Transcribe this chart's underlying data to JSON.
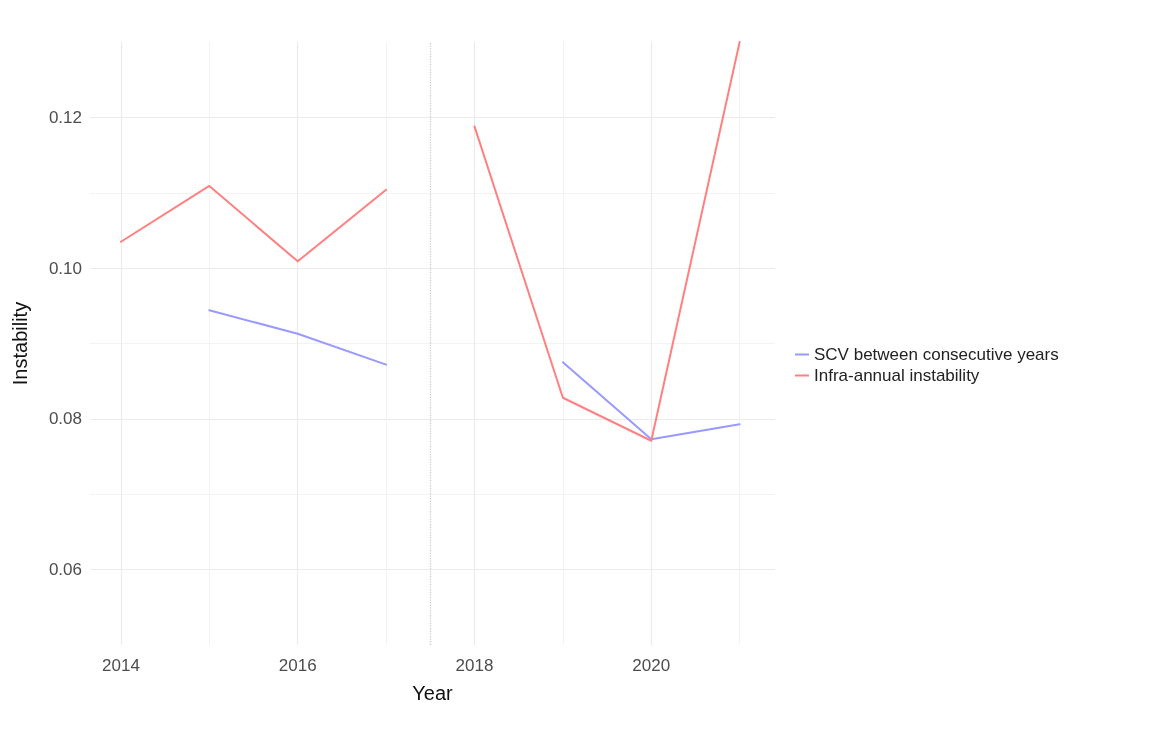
{
  "chart_data": {
    "type": "line",
    "xlabel": "Year",
    "ylabel": "Instability",
    "x": [
      2014,
      2015,
      2016,
      2017,
      2017.5,
      2018,
      2019,
      2020,
      2021
    ],
    "series": [
      {
        "name": "SCV between consecutive years",
        "color": "#9999ff",
        "values": [
          null,
          0.0944,
          0.0913,
          0.0872,
          null,
          null,
          0.0875,
          0.0773,
          0.0793
        ]
      },
      {
        "name": "Infra-annual instability",
        "color": "#ff8080",
        "values": [
          0.1035,
          0.1109,
          0.1009,
          0.1104,
          null,
          0.1188,
          0.0828,
          0.0771,
          0.13
        ]
      }
    ],
    "xlim": [
      2013.65,
      2021.4
    ],
    "xticks": [
      2014,
      2016,
      2018,
      2020
    ],
    "ylim": [
      0.05,
      0.13
    ],
    "yticks": [
      0.06,
      0.08,
      {
        "value": 0.1,
        "label": "0.10"
      },
      0.12
    ],
    "ref_lines": [
      {
        "axis": "x",
        "value": 2017.5,
        "color": "#cccccc",
        "line_style": "dotted"
      }
    ],
    "grid": true,
    "legend": "right",
    "marker": "none",
    "line_style": "solid"
  }
}
